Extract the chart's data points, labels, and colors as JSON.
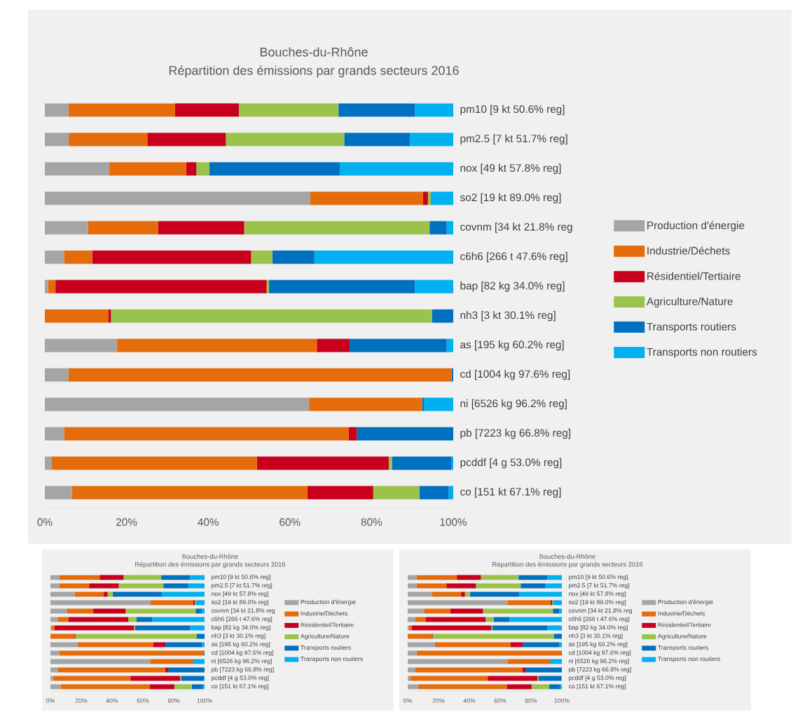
{
  "chart_data": [
    {
      "type": "bar",
      "orientation": "horizontal",
      "stacked": true,
      "legend": "right",
      "title": "Bouches-du-Rhône",
      "subtitle": "Répartition des émissions par grands secteurs 2016",
      "categories": [
        "pm10 [9 kt 50.6% reg]",
        "pm2.5 [7 kt 51.7% reg]",
        "nox [49 kt 57.8% reg]",
        "so2 [19 kt 89.0% reg]",
        "covnm [34 kt 21.8% reg",
        "c6h6 [266 t 47.6% reg]",
        "bap [82 kg 34.0% reg]",
        "nh3 [3 kt 30.1% reg]",
        "as [195 kg 60.2% reg]",
        "cd [1004 kg 97.6% reg]",
        "ni [6526 kg 96.2% reg]",
        "pb [7223 kg 66.8% reg]",
        "pcddf [4 g 53.0% reg]",
        "co [151 kt 67.1% reg]"
      ],
      "series": [
        {
          "name": "Production d'énergie",
          "color": "#a5a5a5",
          "values": [
            5.8,
            5.8,
            15.8,
            65.0,
            10.6,
            4.7,
            0.8,
            0,
            17.7,
            5.8,
            64.7,
            4.7,
            1.6,
            6.6
          ]
        },
        {
          "name": "Industrie/Déchets",
          "color": "#e46c0a",
          "values": [
            26.1,
            19.3,
            18.8,
            27.6,
            17.1,
            6.9,
            1.8,
            15.6,
            48.9,
            93.8,
            27.7,
            69.7,
            50.3,
            57.7
          ]
        },
        {
          "name": "Résidentiel/Tertiaire",
          "color": "#c8001e",
          "values": [
            15.6,
            19.2,
            2.5,
            1.2,
            21.1,
            38.9,
            51.7,
            0.6,
            8.0,
            0,
            0,
            2.0,
            32.3,
            16.1
          ]
        },
        {
          "name": "Agriculture/Nature",
          "color": "#9bc34b",
          "values": [
            24.4,
            29.0,
            3.2,
            0.7,
            45.4,
            5.2,
            0.6,
            78.6,
            0,
            0,
            0,
            0,
            0.8,
            11.3
          ]
        },
        {
          "name": "Transports routiers",
          "color": "#0070c0",
          "values": [
            18.7,
            16.1,
            31.9,
            0,
            4.2,
            10.3,
            35.7,
            5.2,
            23.8,
            0.4,
            0.4,
            23.6,
            14.6,
            7.2
          ]
        },
        {
          "name": "Transports non routiers",
          "color": "#00b0f0",
          "values": [
            9.4,
            10.6,
            27.8,
            5.5,
            1.6,
            34.0,
            9.4,
            0,
            1.6,
            0,
            7.2,
            0,
            0.4,
            1.1
          ]
        }
      ],
      "xlim": [
        0,
        100
      ],
      "xticks": [
        {
          "value": 0,
          "label": "0%"
        },
        {
          "value": 20,
          "label": "20%"
        },
        {
          "value": 40,
          "label": "40%"
        },
        {
          "value": 60,
          "label": "60%"
        },
        {
          "value": 80,
          "label": "80%"
        },
        {
          "value": 100,
          "label": "100%"
        }
      ]
    },
    {
      "type": "bar",
      "orientation": "horizontal",
      "stacked": true,
      "legend": "right",
      "title": "Bouches-du-Rhône",
      "subtitle": "Répartition des émissions par grands secteurs 2016",
      "categories": [
        "pm10 [9 kt 50.6% reg]",
        "pm2.5 [7 kt 51.7% reg]",
        "nox [49 kt 57.8% reg]",
        "so2 [19 kt 89.0% reg]",
        "covnm [34 kt 21.8% reg",
        "c6h6 [266 t 47.6% reg]",
        "bap [82 kg 34.0% reg]",
        "nh3 [3 kt 30.1% reg]",
        "as [195 kg 60.2% reg]",
        "cd [1004 kg 97.6% reg]",
        "ni [6526 kg 96.2% reg]",
        "pb [7223 kg 66.8% reg]",
        "pcddf [4 g 53.0% reg]",
        "co [151 kt 67.1% reg]"
      ],
      "series": [
        {
          "name": "Production d'énergie",
          "color": "#a5a5a5",
          "values": [
            5.8,
            5.8,
            15.8,
            65.0,
            10.6,
            4.7,
            0.8,
            0,
            17.7,
            5.8,
            64.7,
            4.7,
            1.6,
            6.6
          ]
        },
        {
          "name": "Industrie/Déchets",
          "color": "#e46c0a",
          "values": [
            26.1,
            19.3,
            18.8,
            27.6,
            17.1,
            6.9,
            1.8,
            15.6,
            48.9,
            93.8,
            27.7,
            69.7,
            50.3,
            57.7
          ]
        },
        {
          "name": "Résidentiel/Tertiaire",
          "color": "#c8001e",
          "values": [
            15.6,
            19.2,
            2.5,
            1.2,
            21.1,
            38.9,
            51.7,
            0.6,
            8.0,
            0,
            0,
            2.0,
            32.3,
            16.1
          ]
        },
        {
          "name": "Agriculture/Nature",
          "color": "#9bc34b",
          "values": [
            24.4,
            29.0,
            3.2,
            0.7,
            45.4,
            5.2,
            0.6,
            78.6,
            0,
            0,
            0,
            0,
            0.8,
            11.3
          ]
        },
        {
          "name": "Transports routiers",
          "color": "#0070c0",
          "values": [
            18.7,
            16.1,
            31.9,
            0,
            4.2,
            10.3,
            35.7,
            5.2,
            23.8,
            0.4,
            0.4,
            23.6,
            14.6,
            7.2
          ]
        },
        {
          "name": "Transports non routiers",
          "color": "#00b0f0",
          "values": [
            9.4,
            10.6,
            27.8,
            5.5,
            1.6,
            34.0,
            9.4,
            0,
            1.6,
            0,
            7.2,
            0,
            0.4,
            1.1
          ]
        }
      ],
      "xlim": [
        0,
        100
      ],
      "xticks": [
        {
          "value": 0,
          "label": "0%"
        },
        {
          "value": 20,
          "label": "20%"
        },
        {
          "value": 40,
          "label": "40%"
        },
        {
          "value": 60,
          "label": "60%"
        },
        {
          "value": 80,
          "label": "80%"
        },
        {
          "value": 100,
          "label": "100%"
        }
      ]
    },
    {
      "type": "bar",
      "orientation": "horizontal",
      "stacked": true,
      "legend": "right",
      "title": "Bouches-du-Rhône",
      "subtitle": "Répartition des émissions par grands secteurs 2016",
      "categories": [
        "pm10 [9 kt 50.6% reg]",
        "pm2.5 [7 kt 51.7% reg]",
        "nox [49 kt 57.8% reg]",
        "so2 [19 kt 89.0% reg]",
        "covnm [34 kt 21.8% reg",
        "c6h6 [266 t 47.6% reg]",
        "bap [82 kg 34.0% reg]",
        "nh3 [3 kt 30.1% reg]",
        "as [195 kg 60.2% reg]",
        "cd [1004 kg 97.6% reg]",
        "ni [6526 kg 96.2% reg]",
        "pb [7223 kg 66.8% reg]",
        "pcddf [4 g 53.0% reg]",
        "co [151 kt 67.1% reg]"
      ],
      "series": [
        {
          "name": "Production d'énergie",
          "color": "#a5a5a5",
          "values": [
            5.8,
            5.8,
            15.8,
            65.0,
            10.6,
            4.7,
            0.8,
            0,
            17.7,
            5.8,
            64.7,
            4.7,
            1.6,
            6.6
          ]
        },
        {
          "name": "Industrie/Déchets",
          "color": "#e46c0a",
          "values": [
            26.1,
            19.3,
            18.8,
            27.6,
            17.1,
            6.9,
            1.8,
            15.6,
            48.9,
            93.8,
            27.7,
            69.7,
            50.3,
            57.7
          ]
        },
        {
          "name": "Résidentiel/Tertiaire",
          "color": "#c8001e",
          "values": [
            15.6,
            19.2,
            2.5,
            1.2,
            21.1,
            38.9,
            51.7,
            0.6,
            8.0,
            0,
            0,
            2.0,
            32.3,
            16.1
          ]
        },
        {
          "name": "Agriculture/Nature",
          "color": "#9bc34b",
          "values": [
            24.4,
            29.0,
            3.2,
            0.7,
            45.4,
            5.2,
            0.6,
            78.6,
            0,
            0,
            0,
            0,
            0.8,
            11.3
          ]
        },
        {
          "name": "Transports routiers",
          "color": "#0070c0",
          "values": [
            18.7,
            16.1,
            31.9,
            0,
            4.2,
            10.3,
            35.7,
            5.2,
            23.8,
            0.4,
            0.4,
            23.6,
            14.6,
            7.2
          ]
        },
        {
          "name": "Transports non routiers",
          "color": "#00b0f0",
          "values": [
            9.4,
            10.6,
            27.8,
            5.5,
            1.6,
            34.0,
            9.4,
            0,
            1.6,
            0,
            7.2,
            0,
            0.4,
            1.1
          ]
        }
      ],
      "xlim": [
        0,
        100
      ],
      "xticks": [
        {
          "value": 0,
          "label": "0%"
        },
        {
          "value": 20,
          "label": "20%"
        },
        {
          "value": 40,
          "label": "40%"
        },
        {
          "value": 60,
          "label": "60%"
        },
        {
          "value": 80,
          "label": "80%"
        },
        {
          "value": 100,
          "label": "100%"
        }
      ]
    }
  ]
}
